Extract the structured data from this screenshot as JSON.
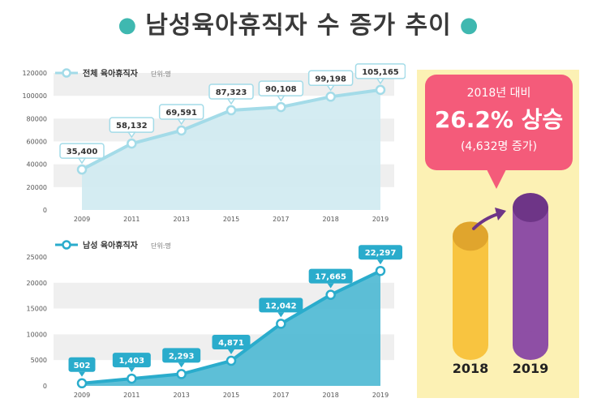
{
  "title": "남성육아휴직자 수 증가 추이",
  "chart_data": [
    {
      "type": "area",
      "legend": "전체 육아휴직자",
      "unit": "단위:명",
      "categories": [
        "2009",
        "2011",
        "2013",
        "2015",
        "2017",
        "2018",
        "2019"
      ],
      "values": [
        35400,
        58132,
        69591,
        87323,
        90108,
        99198,
        105165
      ],
      "labels": [
        "35,400",
        "58,132",
        "69,591",
        "87,323",
        "90,108",
        "99,198",
        "105,165"
      ],
      "ylim": [
        0,
        120000
      ],
      "yticks": [
        0,
        20000,
        40000,
        60000,
        80000,
        100000,
        120000
      ],
      "line_color": "#a3dbe8",
      "fill_color": "#cfeaf1"
    },
    {
      "type": "area",
      "legend": "남성 육아휴직자",
      "unit": "단위:명",
      "categories": [
        "2009",
        "2011",
        "2013",
        "2015",
        "2017",
        "2018",
        "2019"
      ],
      "values": [
        502,
        1403,
        2293,
        4871,
        12042,
        17665,
        22297
      ],
      "labels": [
        "502",
        "1,403",
        "2,293",
        "4,871",
        "12,042",
        "17,665",
        "22,297"
      ],
      "ylim": [
        0,
        25000
      ],
      "yticks": [
        0,
        5000,
        10000,
        15000,
        20000,
        25000
      ],
      "line_color": "#2aaccc",
      "fill_color": "#4bb8d3"
    }
  ],
  "callout": {
    "line1": "2018년 대비",
    "line2": "26.2% 상승",
    "line3": "(4,632명 증가)"
  },
  "comparison": {
    "items": [
      {
        "year": "2018",
        "value": 17665,
        "color": "#f8c440",
        "top_color": "#e0a52d"
      },
      {
        "year": "2019",
        "value": 22297,
        "color": "#8e4fa5",
        "top_color": "#6e3587"
      }
    ]
  }
}
